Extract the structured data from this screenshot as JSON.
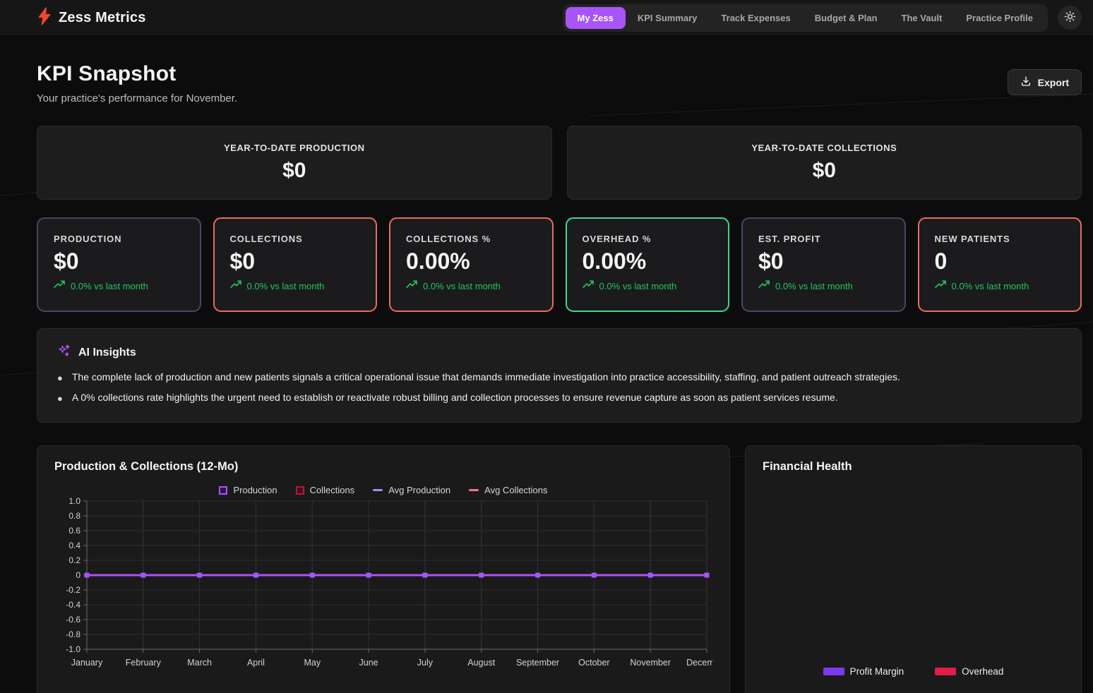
{
  "header": {
    "brand": "Zess Metrics",
    "nav": [
      {
        "label": "My Zess",
        "active": true
      },
      {
        "label": "KPI Summary",
        "active": false
      },
      {
        "label": "Track Expenses",
        "active": false
      },
      {
        "label": "Budget & Plan",
        "active": false
      },
      {
        "label": "The Vault",
        "active": false
      },
      {
        "label": "Practice Profile",
        "active": false
      }
    ],
    "theme_toggle_icon": "sun-icon"
  },
  "page": {
    "title": "KPI Snapshot",
    "subtitle": "Your practice's performance for November.",
    "export_label": "Export"
  },
  "colors": {
    "accent_purple": "#a855f7",
    "trend_green": "#22c55e",
    "logo_red": "#f4452c",
    "border_slate": "#3f4b5e",
    "border_red": "#ee6a5f",
    "border_green": "#3fd68c"
  },
  "ytd_cards": [
    {
      "label": "YEAR-TO-DATE PRODUCTION",
      "value": "$0"
    },
    {
      "label": "YEAR-TO-DATE COLLECTIONS",
      "value": "$0"
    }
  ],
  "kpi_cards": [
    {
      "label": "PRODUCTION",
      "value": "$0",
      "trend": "0.0% vs last month",
      "border_color": "#3f4b5e"
    },
    {
      "label": "COLLECTIONS",
      "value": "$0",
      "trend": "0.0% vs last month",
      "border_color": "#ee6a5f"
    },
    {
      "label": "COLLECTIONS %",
      "value": "0.00%",
      "trend": "0.0% vs last month",
      "border_color": "#ee6a5f"
    },
    {
      "label": "OVERHEAD %",
      "value": "0.00%",
      "trend": "0.0% vs last month",
      "border_color": "#3fd68c"
    },
    {
      "label": "EST. PROFIT",
      "value": "$0",
      "trend": "0.0% vs last month",
      "border_color": "#3f4b5e"
    },
    {
      "label": "NEW PATIENTS",
      "value": "0",
      "trend": "0.0% vs last month",
      "border_color": "#ee6a5f"
    }
  ],
  "ai_insights": {
    "title": "AI Insights",
    "bullets": [
      "The complete lack of production and new patients signals a critical operational issue that demands immediate investigation into practice accessibility, staffing, and patient outreach strategies.",
      "A 0% collections rate highlights the urgent need to establish or reactivate robust billing and collection processes to ensure revenue capture as soon as patient services resume."
    ]
  },
  "chart_data": [
    {
      "type": "line",
      "title": "Production & Collections (12-Mo)",
      "x": [
        "January",
        "February",
        "March",
        "April",
        "May",
        "June",
        "July",
        "August",
        "September",
        "October",
        "November",
        "December"
      ],
      "series": [
        {
          "name": "Production",
          "values": [
            0,
            0,
            0,
            0,
            0,
            0,
            0,
            0,
            0,
            0,
            0,
            0
          ],
          "color": "#a855f7",
          "fill": "#2c1254",
          "swatch": "square",
          "marker": "square",
          "width": 3
        },
        {
          "name": "Collections",
          "values": [
            0,
            0,
            0,
            0,
            0,
            0,
            0,
            0,
            0,
            0,
            0,
            0
          ],
          "color": "#be123c",
          "fill": "#38111e",
          "swatch": "square",
          "marker": "none",
          "width": 2
        },
        {
          "name": "Avg Production",
          "values": [
            0,
            0,
            0,
            0,
            0,
            0,
            0,
            0,
            0,
            0,
            0,
            0
          ],
          "color": "#a78bfa",
          "swatch": "dash",
          "marker": "none",
          "width": 2
        },
        {
          "name": "Avg Collections",
          "values": [
            0,
            0,
            0,
            0,
            0,
            0,
            0,
            0,
            0,
            0,
            0,
            0
          ],
          "color": "#fb7185",
          "swatch": "dash",
          "marker": "none",
          "width": 2
        }
      ],
      "ylim": [
        -1.0,
        1.0
      ],
      "yticks": [
        "1.0",
        "0.8",
        "0.6",
        "0.4",
        "0.2",
        "0",
        "-0.2",
        "-0.4",
        "-0.6",
        "-0.8",
        "-1.0"
      ],
      "grid": true,
      "legend_position": "top"
    },
    {
      "type": "pie",
      "title": "Financial Health",
      "values": [],
      "empty": true,
      "legend": [
        {
          "label": "Profit Margin",
          "color": "#7c3aed"
        },
        {
          "label": "Overhead",
          "color": "#e11d48"
        }
      ],
      "legend_position": "bottom"
    }
  ]
}
